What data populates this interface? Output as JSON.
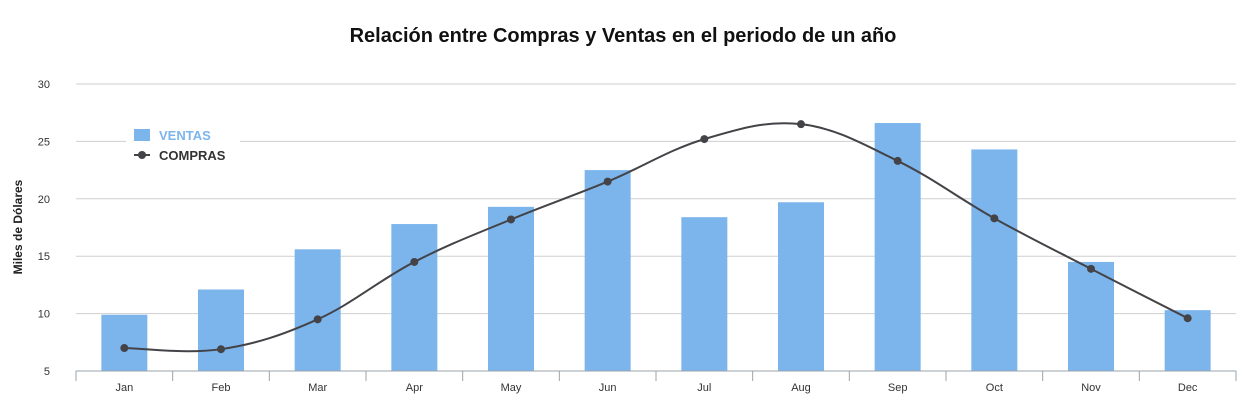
{
  "chart_data": {
    "type": "bar",
    "title": "Relación entre Compras y Ventas en el periodo de un año",
    "ylabel": "Miles de Dólares",
    "xlabel": "",
    "categories": [
      "Jan",
      "Feb",
      "Mar",
      "Apr",
      "May",
      "Jun",
      "Jul",
      "Aug",
      "Sep",
      "Oct",
      "Nov",
      "Dec"
    ],
    "ylim": [
      5,
      30
    ],
    "yticks": [
      5,
      10,
      15,
      20,
      25,
      30
    ],
    "grid": true,
    "legend_position": "top-left",
    "series": [
      {
        "name": "VENTAS",
        "type": "bar",
        "color": "#7cb5ec",
        "values": [
          9.9,
          12.1,
          15.6,
          17.8,
          19.3,
          22.5,
          18.4,
          19.7,
          26.6,
          24.3,
          14.5,
          10.3
        ]
      },
      {
        "name": "COMPRAS",
        "type": "line",
        "smooth": true,
        "color": "#434348",
        "values": [
          7.0,
          6.9,
          9.5,
          14.5,
          18.2,
          21.5,
          25.2,
          26.5,
          23.3,
          18.3,
          13.9,
          9.6
        ]
      }
    ]
  }
}
